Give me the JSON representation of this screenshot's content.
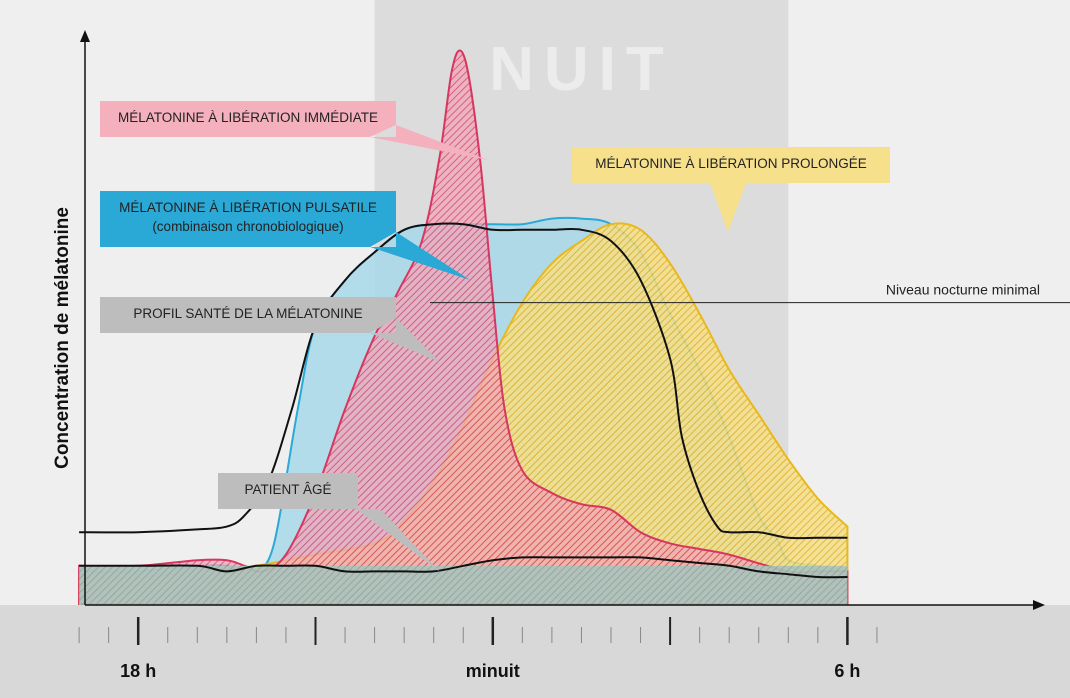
{
  "chart_data": {
    "type": "area",
    "title": "",
    "ylabel": "Concentration de mélatonine",
    "xlabel": "",
    "x_ticks": [
      "18 h",
      "minuit",
      "6 h"
    ],
    "x_range_hours": [
      16.0,
      30.5
    ],
    "y_range": [
      0,
      100
    ],
    "night_band": {
      "label": "NUIT",
      "from_hour": 22,
      "to_hour": 29
    },
    "reference_line": {
      "label": "Niveau nocturne minimal",
      "y": 54
    },
    "colors": {
      "background": "#efefef",
      "night_band": "#dcdcdc",
      "axis_band": "#d8d8d8",
      "immediate": "#d6365f",
      "pulsatile": "#2aa8d6",
      "prolonged": "#e8b81c",
      "healthy": "#111111",
      "aged": "#111111",
      "base_fill": "#9fbfb6"
    },
    "series": [
      {
        "name": "MÉLATONINE À LIBÉRATION IMMÉDIATE",
        "x": [
          17,
          18,
          19,
          19.5,
          19.8,
          20.1,
          20.5,
          21,
          21.5,
          22,
          22.4,
          22.8,
          23.1,
          23.3,
          23.45,
          23.6,
          23.8,
          24,
          24.2,
          24.5,
          25,
          25.5,
          26,
          26.5,
          27,
          27.5,
          28,
          29,
          29.5,
          30
        ],
        "y": [
          7,
          7,
          8,
          8,
          7,
          6,
          9,
          20,
          35,
          48,
          56,
          65,
          80,
          95,
          99,
          94,
          78,
          55,
          35,
          24,
          20,
          18,
          17,
          13,
          11,
          10,
          9,
          6,
          6,
          6
        ]
      },
      {
        "name": "MÉLATONINE À LIBÉRATION PULSATILE",
        "x": [
          17,
          18,
          19,
          19.5,
          19.8,
          20,
          20.3,
          20.7,
          21,
          21.5,
          22,
          22.5,
          23,
          23.5,
          24,
          24.5,
          25,
          25.5,
          26,
          26.5,
          27,
          27.5,
          28,
          28.5,
          28.8,
          29,
          29.5,
          30
        ],
        "y": [
          6,
          6,
          7,
          7,
          6,
          6,
          11,
          35,
          50,
          58,
          63,
          67,
          68,
          68,
          68,
          68,
          69,
          69,
          68,
          63,
          52,
          42,
          30,
          16,
          12,
          8,
          7,
          6
        ]
      },
      {
        "name": "MÉLATONINE À LIBÉRATION PROLONGÉE",
        "x": [
          17,
          18,
          19,
          20,
          21,
          22,
          22.5,
          23,
          23.5,
          24,
          24.5,
          25,
          25.5,
          26,
          26.5,
          27,
          27.5,
          28,
          28.5,
          29,
          29.5,
          30
        ],
        "y": [
          5,
          5,
          6,
          7,
          9,
          11,
          15,
          22,
          32,
          44,
          54,
          61,
          65,
          68,
          67,
          61,
          52,
          42,
          34,
          26,
          19,
          14
        ]
      },
      {
        "name": "PROFIL SANTÉ DE LA MÉLATONINE",
        "x": [
          17,
          18,
          19,
          19.5,
          19.8,
          20.2,
          20.6,
          21,
          21.5,
          22,
          22.5,
          23,
          23.5,
          24,
          24.5,
          25,
          25.5,
          26,
          26.5,
          27,
          27.2,
          27.5,
          27.8,
          28,
          28.5,
          29,
          29.5,
          30
        ],
        "y": [
          13,
          13,
          13.5,
          14,
          16,
          22,
          35,
          50,
          58,
          63,
          67,
          68,
          68,
          67,
          67,
          67,
          67,
          65,
          58,
          44,
          30,
          20,
          14,
          13,
          13,
          12,
          12,
          12
        ]
      },
      {
        "name": "PATIENT ÂGÉ",
        "x": [
          17,
          18,
          19,
          19.5,
          20,
          20.5,
          21,
          21.5,
          22,
          22.5,
          23,
          23.5,
          24,
          24.5,
          25,
          25.5,
          26,
          26.5,
          27,
          27.5,
          28,
          28.5,
          29,
          29.5,
          30
        ],
        "y": [
          7,
          7,
          7,
          6,
          7,
          7,
          7,
          6,
          6,
          6,
          6,
          7,
          8,
          8.5,
          8.5,
          8.5,
          8.5,
          8.5,
          8,
          7.5,
          7,
          6,
          5.5,
          5,
          5
        ]
      }
    ],
    "baseline_fill": {
      "from_hour": 17,
      "to_hour": 30,
      "y": 7
    }
  },
  "callouts": {
    "immediate": [
      "MÉLATONINE À LIBÉRATION IMMÉDIATE"
    ],
    "pulsatile": [
      "MÉLATONINE À LIBÉRATION PULSATILE",
      "(combinaison chronobiologique)"
    ],
    "prolonged": [
      "MÉLATONINE À LIBÉRATION PROLONGÉE"
    ],
    "healthy": [
      "PROFIL SANTÉ DE LA MÉLATONINE"
    ],
    "aged": [
      "PATIENT ÂGÉ"
    ]
  }
}
